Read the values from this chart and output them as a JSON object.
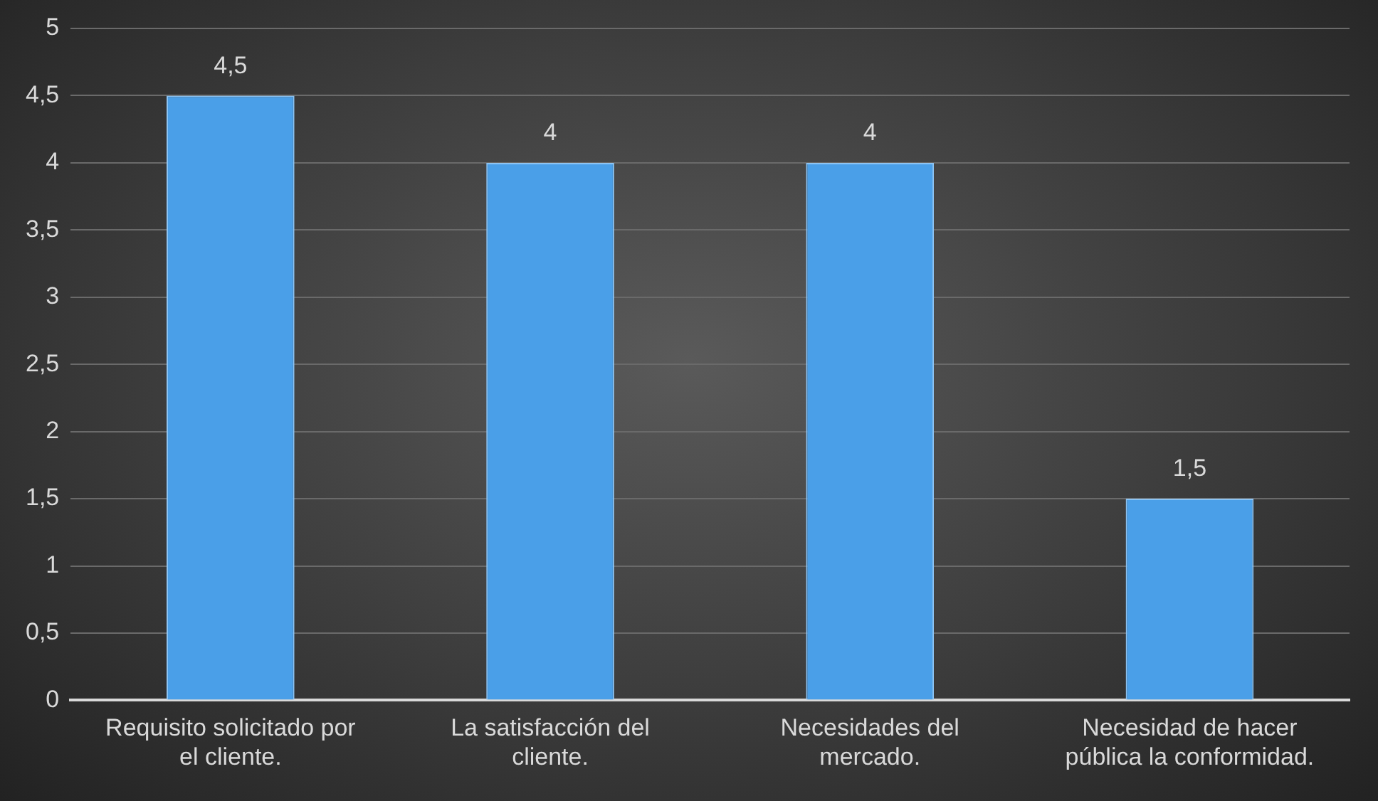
{
  "chart_data": {
    "type": "bar",
    "categories": [
      "Requisito solicitado por el cliente.",
      "La satisfacción del cliente.",
      "Necesidades del mercado.",
      "Necesidad de hacer pública la conformidad."
    ],
    "values": [
      4.5,
      4,
      4,
      1.5
    ],
    "color": "#4a9fe8",
    "value_labels": [
      "4,5",
      "4",
      "4",
      "1,5"
    ],
    "ylim": [
      0,
      5
    ],
    "yticks": [
      0,
      {
        "value": 0.5,
        "label": "0,5"
      },
      1,
      {
        "value": 1.5,
        "label": "1,5"
      },
      2,
      {
        "value": 2.5,
        "label": "2,5"
      },
      3,
      {
        "value": 3.5,
        "label": "3,5"
      },
      4,
      {
        "value": 4.5,
        "label": "4,5"
      },
      5
    ],
    "grid": "y",
    "legend": false
  }
}
